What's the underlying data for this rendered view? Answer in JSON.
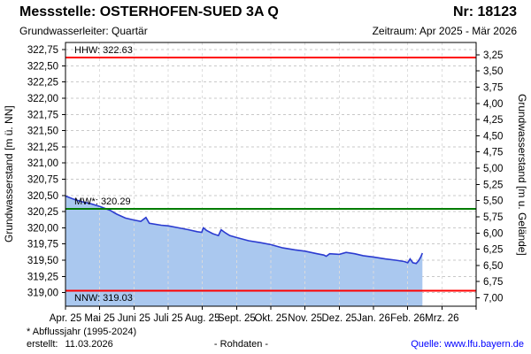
{
  "header": {
    "title": "Messstelle: OSTERHOFEN-SUED 3A Q",
    "number": "Nr: 18123",
    "aquifer": "Grundwasserleiter: Quartär",
    "period": "Zeitraum: Apr 2025 - Mär 2026"
  },
  "chart_data": {
    "type": "area",
    "x_categories": [
      "Apr. 25",
      "Mai 25",
      "Juni 25",
      "Juli 25",
      "Aug. 25",
      "Sept. 25",
      "Okt. 25",
      "Nov. 25",
      "Dez. 25",
      "Jan. 26",
      "Feb. 26",
      "Mrz. 26"
    ],
    "y_left": {
      "label": "Grundwasserstand [m ü. NN]",
      "min": 319.0,
      "max": 322.75,
      "step": 0.25,
      "plot_top_value": 322.86,
      "plot_bottom_value": 318.79
    },
    "y_right": {
      "label": "Grundwasserstand [m u. Gelände]",
      "min": 3.25,
      "max": 7.0,
      "step": 0.25,
      "surface_elevation": 325.92
    },
    "reference_lines": [
      {
        "id": "hhw",
        "label": "HHW: 322.63",
        "value": 322.63,
        "color": "#ff0000",
        "label_side": "above"
      },
      {
        "id": "mw",
        "label": "MW*: 320.29",
        "value": 320.29,
        "color": "#007c00",
        "label_side": "above"
      },
      {
        "id": "nnw",
        "label": "NNW: 319.03",
        "value": 319.03,
        "color": "#ff0000",
        "label_side": "below"
      }
    ],
    "series": [
      {
        "name": "Grundwasserstand Rohdaten",
        "line_color": "#2b3bd0",
        "fill_color": "#aac8ef",
        "points": [
          [
            0.0,
            320.49
          ],
          [
            0.25,
            320.44
          ],
          [
            0.5,
            320.4
          ],
          [
            0.75,
            320.37
          ],
          [
            1.0,
            320.33
          ],
          [
            1.3,
            320.27
          ],
          [
            1.5,
            320.21
          ],
          [
            1.75,
            320.15
          ],
          [
            2.0,
            320.12
          ],
          [
            2.2,
            320.1
          ],
          [
            2.35,
            320.16
          ],
          [
            2.45,
            320.07
          ],
          [
            2.8,
            320.04
          ],
          [
            3.0,
            320.03
          ],
          [
            3.3,
            320.0
          ],
          [
            3.6,
            319.97
          ],
          [
            3.85,
            319.94
          ],
          [
            3.98,
            319.93
          ],
          [
            4.03,
            320.0
          ],
          [
            4.12,
            319.96
          ],
          [
            4.3,
            319.91
          ],
          [
            4.47,
            319.88
          ],
          [
            4.55,
            319.97
          ],
          [
            4.65,
            319.93
          ],
          [
            4.8,
            319.88
          ],
          [
            5.0,
            319.85
          ],
          [
            5.35,
            319.8
          ],
          [
            5.7,
            319.77
          ],
          [
            6.0,
            319.74
          ],
          [
            6.35,
            319.69
          ],
          [
            6.7,
            319.66
          ],
          [
            7.0,
            319.64
          ],
          [
            7.35,
            319.6
          ],
          [
            7.55,
            319.58
          ],
          [
            7.62,
            319.56
          ],
          [
            7.72,
            319.6
          ],
          [
            8.0,
            319.59
          ],
          [
            8.2,
            319.62
          ],
          [
            8.45,
            319.6
          ],
          [
            8.7,
            319.57
          ],
          [
            9.0,
            319.55
          ],
          [
            9.35,
            319.52
          ],
          [
            9.65,
            319.5
          ],
          [
            9.9,
            319.48
          ],
          [
            10.0,
            319.46
          ],
          [
            10.07,
            319.52
          ],
          [
            10.15,
            319.46
          ],
          [
            10.25,
            319.45
          ],
          [
            10.32,
            319.49
          ],
          [
            10.38,
            319.55
          ],
          [
            10.43,
            319.61
          ]
        ]
      }
    ],
    "grid": true,
    "legend_position": "none"
  },
  "footer": {
    "footnote": "* Abflussjahr (1995-2024)",
    "created_label": "erstellt:",
    "created_date": "11.03.2026",
    "center_note": "- Rohdaten -",
    "source_label": "Quelle:",
    "source_link": "www.lfu.bayern.de"
  },
  "colors": {
    "grid_line": "#c9c9c9",
    "grid_line_over_fill": "#dcdcdc",
    "plot_border": "#000000",
    "link": "#0000ff"
  }
}
